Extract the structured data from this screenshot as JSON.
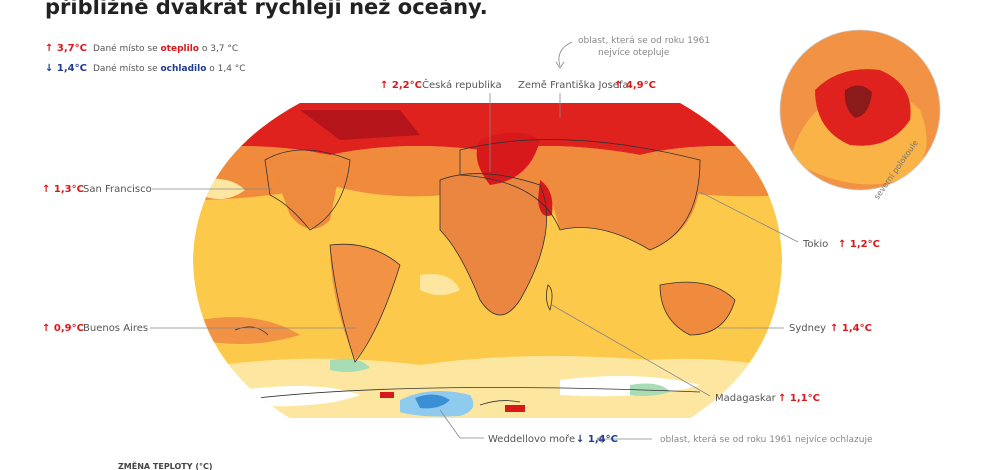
{
  "header": {
    "title": "přibližně dvakrát rychleji než oceány."
  },
  "legend": [
    {
      "change": "↑ 3,7°C",
      "before": "Dané místo se ",
      "keyword": "oteplilo",
      "after": " o 3,7 °C"
    },
    {
      "change": "↓ 1,4°C",
      "before": "Dané místo se ",
      "keyword": "ochladilo",
      "after": " o 1,4 °C"
    }
  ],
  "annotations": {
    "warming": [
      "oblast, která se od roku 1961",
      "nejvíce otepluje"
    ],
    "cooling": "oblast, která se od roku 1961 nejvíce ochlazuje"
  },
  "places": [
    {
      "name": "Česká republika",
      "change": "↑ 2,2°C"
    },
    {
      "name": "Země Františka Josefa",
      "change": "↑ 4,9°C"
    },
    {
      "name": "San Francisco",
      "change": "↑ 1,3°C"
    },
    {
      "name": "Tokio",
      "change": "↑ 1,2°C"
    },
    {
      "name": "Buenos Aires",
      "change": "↑ 0,9°C"
    },
    {
      "name": "Sydney",
      "change": "↑ 1,4°C"
    },
    {
      "name": "Madagaskar",
      "change": "↑ 1,1°C"
    },
    {
      "name": "Weddellovo moře",
      "change": "↓ 1,4°C"
    }
  ],
  "globe_label": "severní polokoule",
  "scale_title": "ZMĚNA TEPLOTY (°C)"
}
